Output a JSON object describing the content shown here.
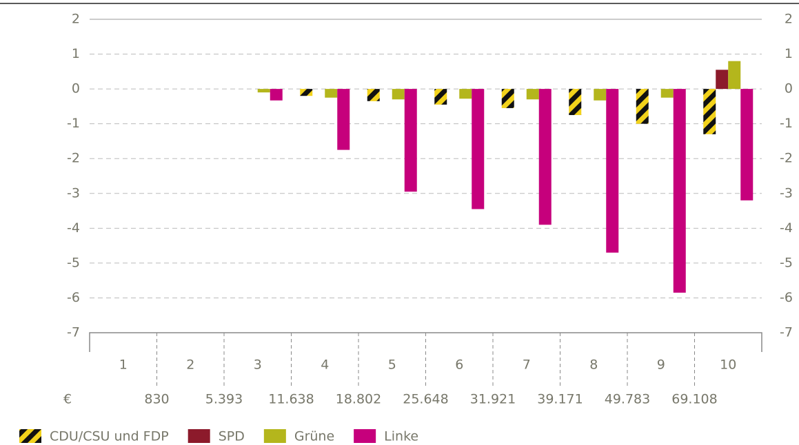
{
  "chart_data": {
    "type": "bar",
    "categories": [
      "1",
      "2",
      "3",
      "4",
      "5",
      "6",
      "7",
      "8",
      "9",
      "10"
    ],
    "currency_label": "€",
    "income_bounds": [
      "830",
      "5.393",
      "11.638",
      "18.802",
      "25.648",
      "31.921",
      "39.171",
      "49.783",
      "69.108"
    ],
    "series": [
      {
        "name": "CDU/CSU und FDP",
        "color": "#f2d21b",
        "hatch": true,
        "values": [
          0,
          0,
          0,
          -0.2,
          -0.35,
          -0.45,
          -0.55,
          -0.75,
          -1.0,
          -1.3
        ]
      },
      {
        "name": "SPD",
        "color": "#8c1a2b",
        "values": [
          0,
          0,
          0,
          0,
          0,
          0,
          0,
          0,
          0,
          0.55
        ]
      },
      {
        "name": "Grüne",
        "color": "#b4b61c",
        "values": [
          0,
          0,
          -0.1,
          -0.25,
          -0.3,
          -0.28,
          -0.3,
          -0.33,
          -0.25,
          0.8
        ]
      },
      {
        "name": "Linke",
        "color": "#c6007c",
        "values": [
          0,
          0,
          -0.33,
          -1.75,
          -2.95,
          -3.45,
          -3.9,
          -4.7,
          -5.85,
          -3.2
        ]
      }
    ],
    "ylim": [
      -7,
      2
    ],
    "yticks": [
      -7,
      -6,
      -5,
      -4,
      -3,
      -2,
      -1,
      0,
      1,
      2
    ],
    "grid": true
  }
}
